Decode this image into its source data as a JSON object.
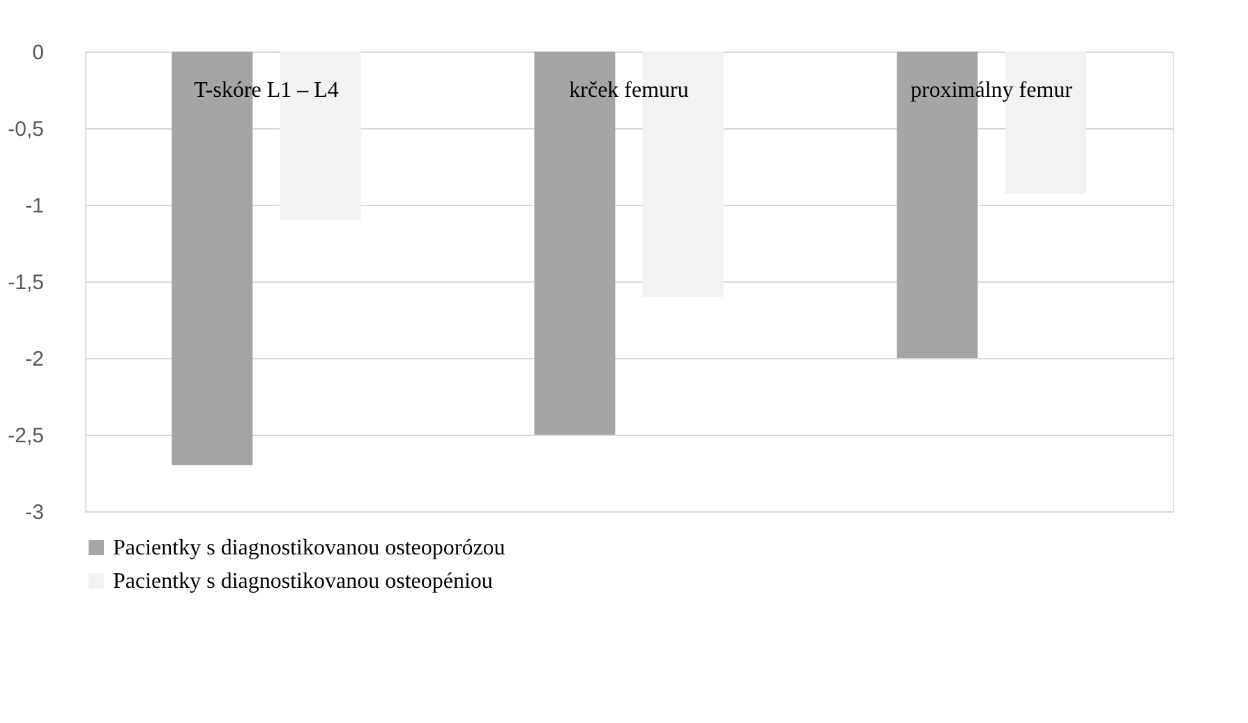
{
  "chart_data": {
    "type": "bar",
    "categories": [
      "T-skóre L1 – L4",
      "krček femuru",
      "proximálny femur"
    ],
    "series": [
      {
        "name": "Pacientky s diagnostikovanou osteoporózou",
        "color": "#a5a5a5",
        "values": [
          -2.7,
          -2.5,
          -2.0
        ]
      },
      {
        "name": "Pacientky s diagnostikovanou osteopéniou",
        "color": "#f2f2f2",
        "values": [
          -1.1,
          -1.6,
          -0.93
        ]
      }
    ],
    "ylim": [
      -3,
      0
    ],
    "yticks": [
      {
        "value": 0,
        "label": "0"
      },
      {
        "value": -0.5,
        "label": "-0,5"
      },
      {
        "value": -1,
        "label": "-1"
      },
      {
        "value": -1.5,
        "label": "-1,5"
      },
      {
        "value": -2,
        "label": "-2"
      },
      {
        "value": -2.5,
        "label": "-2,5"
      },
      {
        "value": -3,
        "label": "-3"
      }
    ],
    "grid": "y",
    "legend": "bottom"
  }
}
